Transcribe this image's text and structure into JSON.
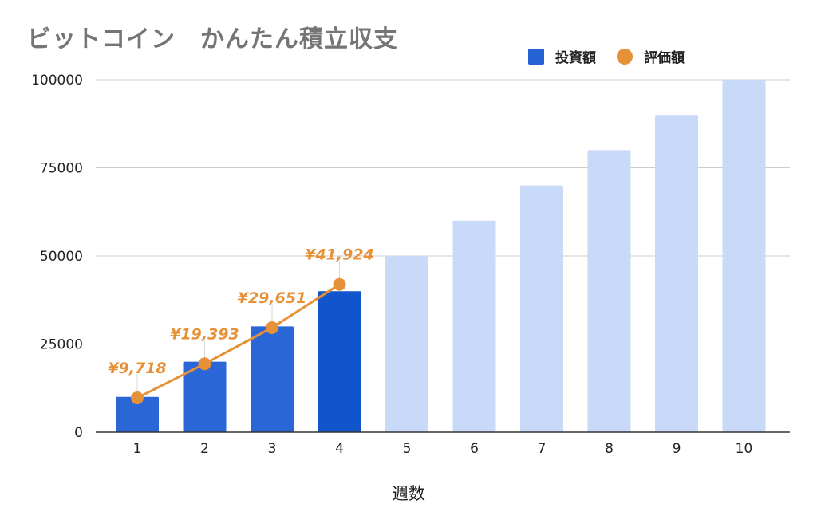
{
  "chart_data": {
    "type": "bar",
    "title": "ビットコイン　かんたん積立収支",
    "xlabel": "週数",
    "ylabel": "",
    "ylim": [
      0,
      100000
    ],
    "yticks": [
      0,
      25000,
      50000,
      75000,
      100000
    ],
    "categories": [
      "1",
      "2",
      "3",
      "4",
      "5",
      "6",
      "7",
      "8",
      "9",
      "10"
    ],
    "legend_position": "top-right",
    "grid": true,
    "series": [
      {
        "name": "投資額",
        "kind": "bar",
        "color": "#2563d4",
        "values": [
          10000,
          20000,
          30000,
          40000,
          50000,
          60000,
          70000,
          80000,
          90000,
          100000
        ],
        "bar_colors": [
          "#2a66d6",
          "#2a66d6",
          "#2a66d6",
          "#1155cc",
          "#c9daf8",
          "#c9daf8",
          "#c9daf8",
          "#c9daf8",
          "#c9daf8",
          "#c9daf8"
        ]
      },
      {
        "name": "評価額",
        "kind": "line",
        "color": "#e69138",
        "values": [
          9718,
          19393,
          29651,
          41924,
          null,
          null,
          null,
          null,
          null,
          null
        ],
        "labels": [
          "¥9,718",
          "¥19,393",
          "¥29,651",
          "¥41,924"
        ]
      }
    ]
  }
}
